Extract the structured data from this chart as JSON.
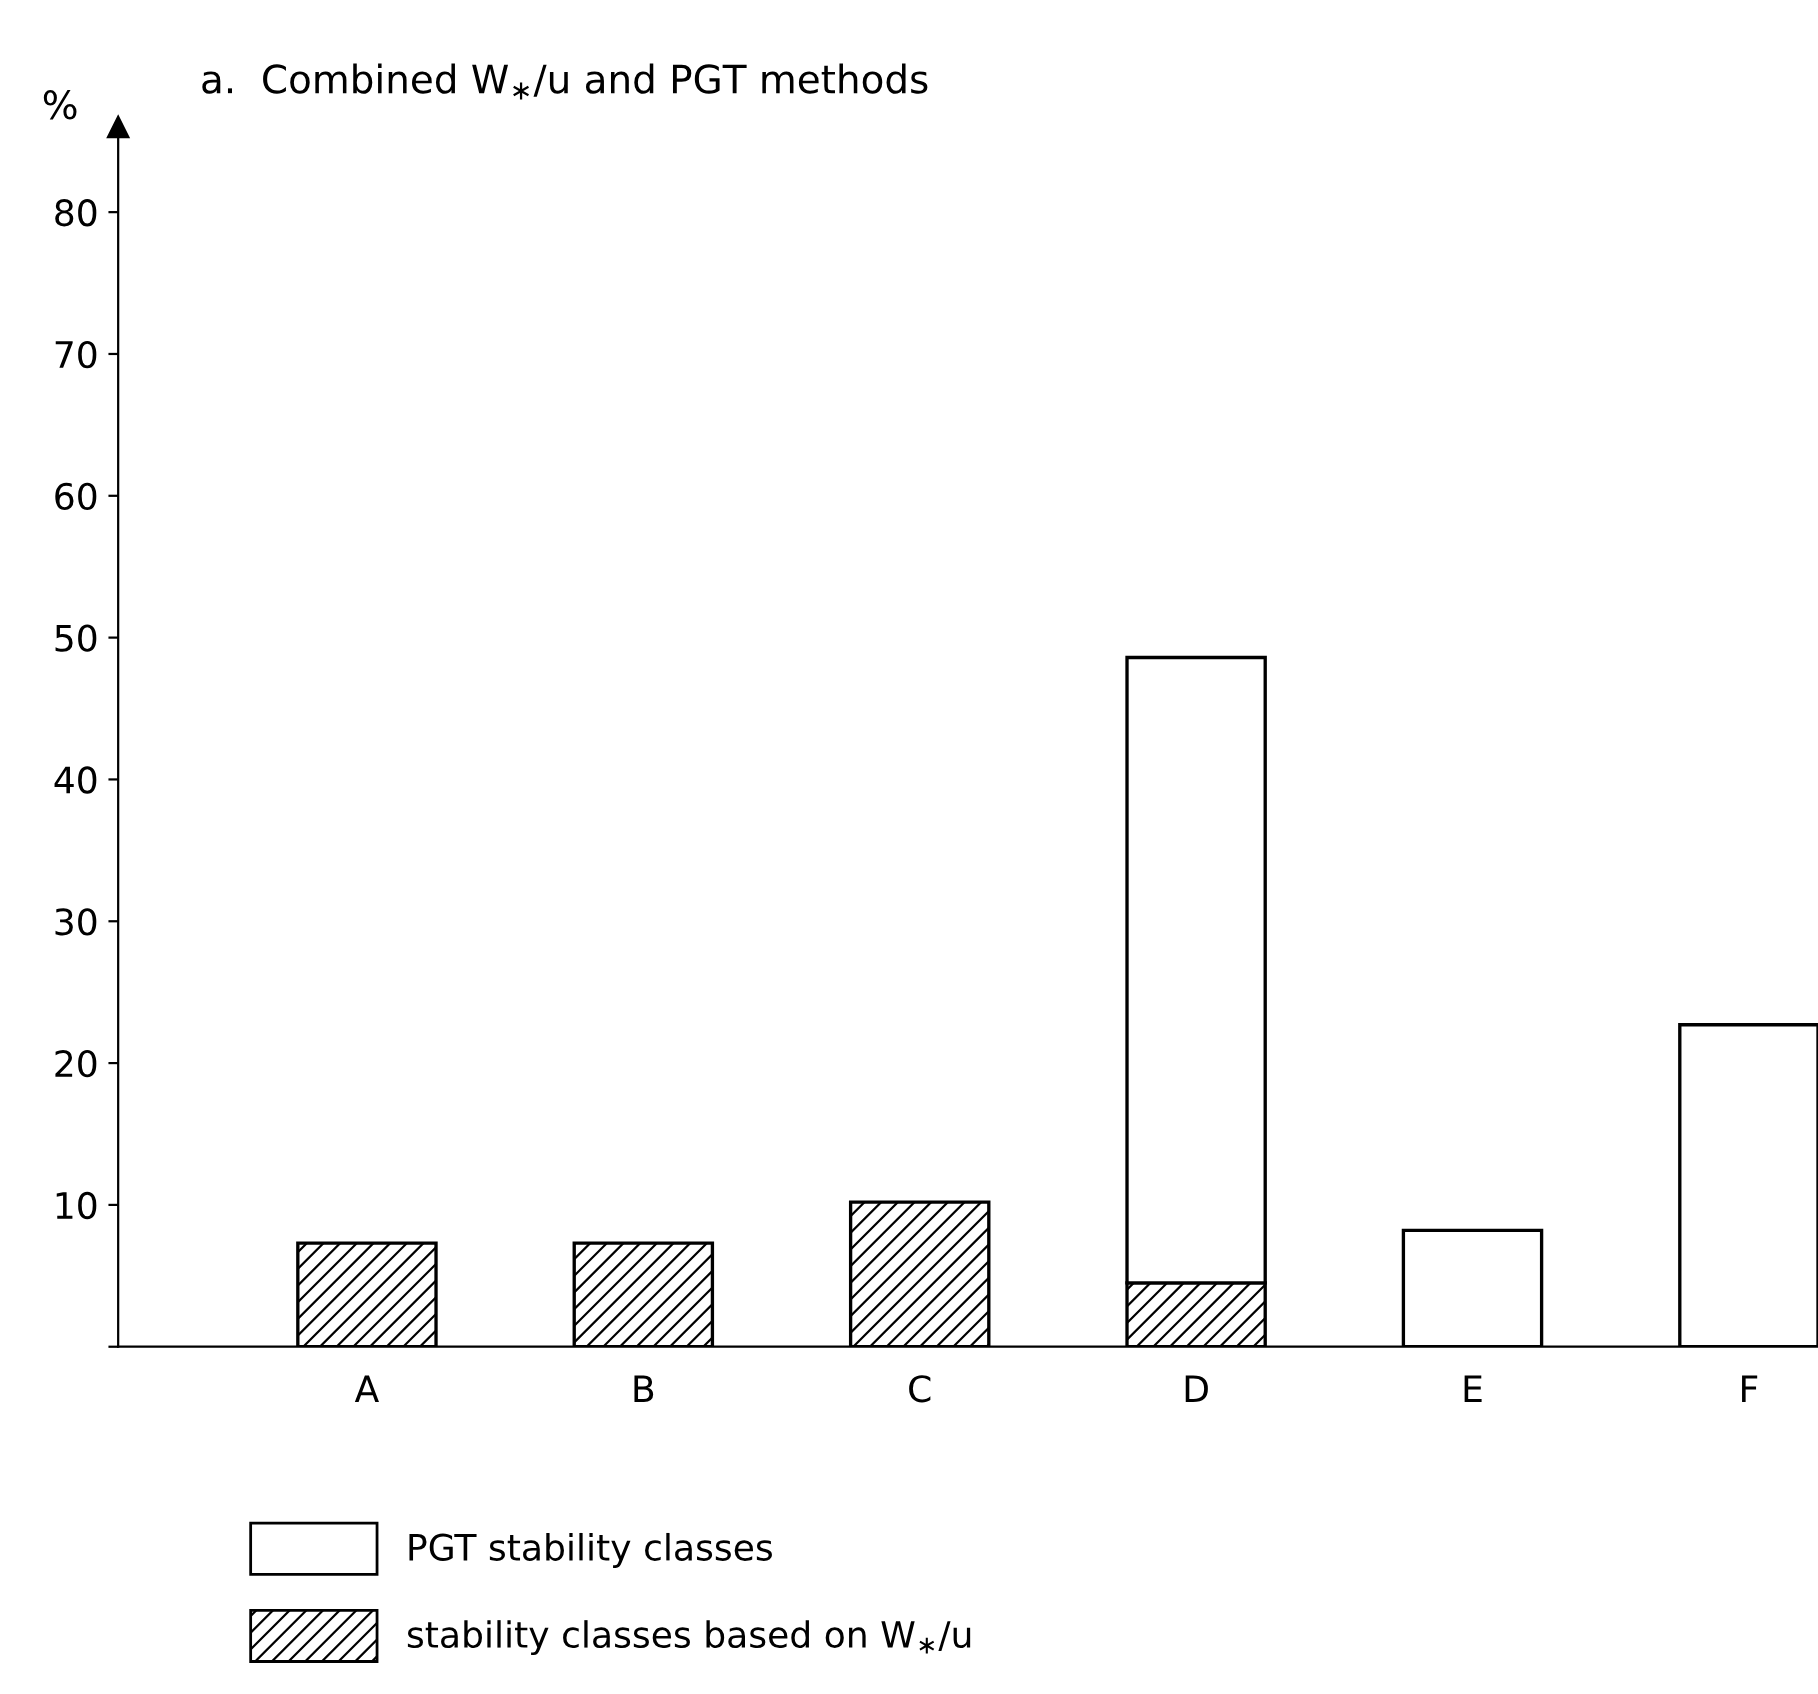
{
  "chart_data": {
    "type": "bar",
    "title": "a.  Combined W$_{∗}$/u and PGT methods",
    "ylabel": "%",
    "categories": [
      "A",
      "B",
      "C",
      "D",
      "E",
      "F"
    ],
    "stacked": true,
    "series": [
      {
        "name": "stability classes based on W$_{∗}$/u",
        "color": "#000000",
        "values": [
          7.3,
          7.3,
          10.2,
          4.5,
          null,
          null
        ]
      },
      {
        "name": "PGT stability classes",
        "color": "#ffffff",
        "values": [
          null,
          null,
          null,
          44.1,
          8.2,
          22.7
        ]
      }
    ],
    "ylim": [
      0,
      86
    ],
    "yticks": [
      {
        "value": 0,
        "label": null
      },
      10,
      20,
      30,
      40,
      50,
      60,
      70,
      80
    ],
    "grid": false,
    "legend": "bottom left"
  }
}
